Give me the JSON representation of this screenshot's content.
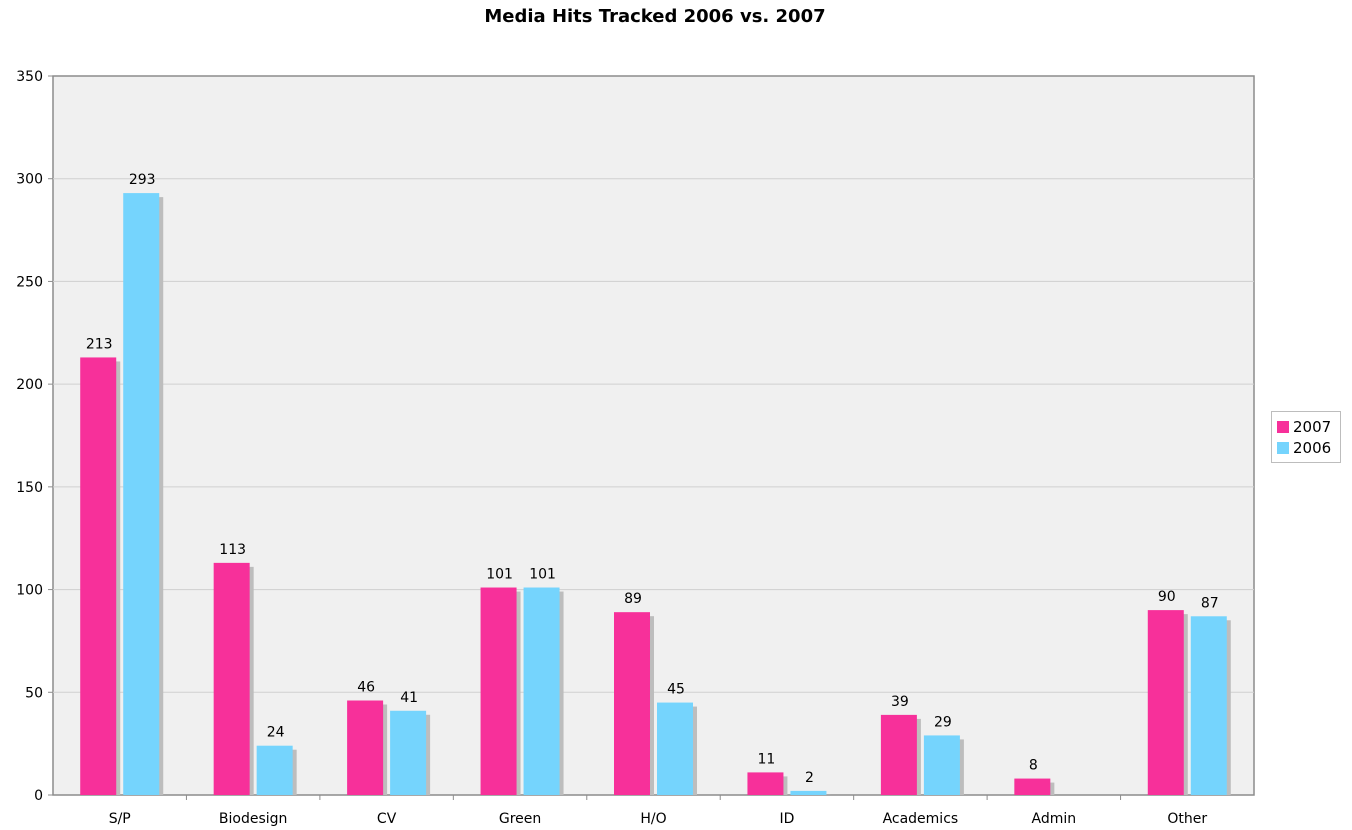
{
  "chart_data": {
    "type": "bar",
    "title": "Media Hits Tracked 2006 vs. 2007",
    "xlabel": "",
    "ylabel": "",
    "categories": [
      "S/P",
      "Biodesign",
      "CV",
      "Green",
      "H/O",
      "ID",
      "Academics",
      "Admin",
      "Other"
    ],
    "series": [
      {
        "name": "2007",
        "color": "#f7309a",
        "values": [
          213,
          113,
          46,
          101,
          89,
          11,
          39,
          8,
          90
        ]
      },
      {
        "name": "2006",
        "color": "#75d4fd",
        "values": [
          293,
          24,
          41,
          101,
          45,
          2,
          29,
          null,
          87
        ]
      }
    ],
    "ylim": [
      0,
      350
    ],
    "yticks": [
      0,
      50,
      100,
      150,
      200,
      250,
      300,
      350
    ],
    "grid": true,
    "legend_position": "right"
  }
}
